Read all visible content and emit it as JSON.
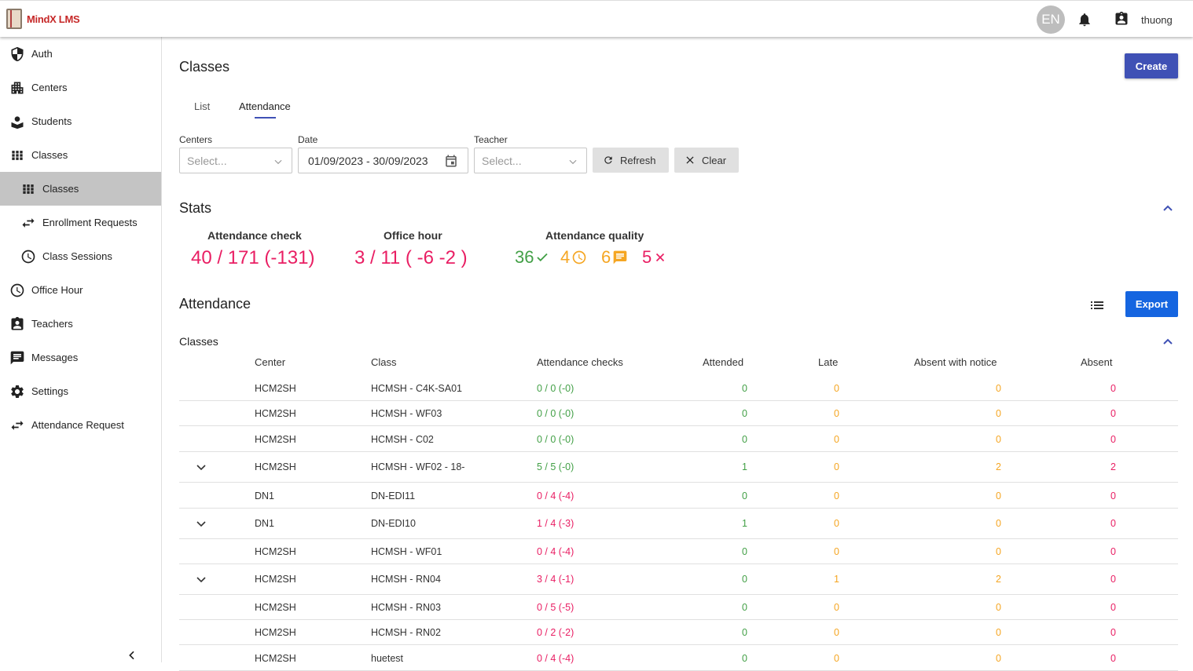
{
  "app": {
    "brand": "MindX LMS",
    "language_avatar": "EN",
    "user": "thuong"
  },
  "sidebar": {
    "items": [
      {
        "label": "Auth",
        "icon": "shield-icon"
      },
      {
        "label": "Centers",
        "icon": "building-icon"
      },
      {
        "label": "Students",
        "icon": "student-icon"
      },
      {
        "label": "Classes",
        "icon": "grid-icon"
      },
      {
        "label": "Classes",
        "icon": "grid-icon",
        "active": true
      },
      {
        "label": "Enrollment Requests",
        "icon": "swap-icon"
      },
      {
        "label": "Class Sessions",
        "icon": "clock-icon"
      },
      {
        "label": "Office Hour",
        "icon": "clock-icon"
      },
      {
        "label": "Teachers",
        "icon": "badge-icon"
      },
      {
        "label": "Messages",
        "icon": "message-icon"
      },
      {
        "label": "Settings",
        "icon": "gear-icon"
      },
      {
        "label": "Attendance Request",
        "icon": "swap-icon"
      }
    ]
  },
  "page": {
    "title": "Classes",
    "create_label": "Create"
  },
  "tabs": [
    {
      "label": "List"
    },
    {
      "label": "Attendance",
      "active": true
    }
  ],
  "filters": {
    "centers_label": "Centers",
    "centers_placeholder": "Select...",
    "date_label": "Date",
    "date_value": "01/09/2023 - 30/09/2023",
    "teacher_label": "Teacher",
    "teacher_placeholder": "Select...",
    "refresh_label": "Refresh",
    "clear_label": "Clear"
  },
  "stats": {
    "title": "Stats",
    "attendance_check_label": "Attendance check",
    "attendance_check_value": "40 / 171 (-131)",
    "office_hour_label": "Office hour",
    "office_hour_value": "3 / 11 ( -6 -2 )",
    "quality_label": "Attendance quality",
    "quality": {
      "attended": "36",
      "late": "4",
      "notice": "6",
      "absent": "5"
    },
    "colors": {
      "attended": "#43a047",
      "late": "#f5a623",
      "notice": "#f5a623",
      "absent": "#e91e63"
    }
  },
  "attendance": {
    "title": "Attendance",
    "export_label": "Export",
    "sub_title": "Classes",
    "columns": [
      "Center",
      "Class",
      "Attendance checks",
      "Attended",
      "Late",
      "Absent with notice",
      "Absent"
    ],
    "rows": [
      {
        "center": "HCM2SH",
        "class": "HCMSH - C4K-SA01",
        "checks": "0 / 0 (-0)",
        "check_status": "green",
        "attended": "0",
        "late": "0",
        "notice": "0",
        "absent": "0",
        "expandable": false
      },
      {
        "center": "HCM2SH",
        "class": "HCMSH - WF03",
        "checks": "0 / 0 (-0)",
        "check_status": "green",
        "attended": "0",
        "late": "0",
        "notice": "0",
        "absent": "0",
        "expandable": false
      },
      {
        "center": "HCM2SH",
        "class": "HCMSH - C02",
        "checks": "0 / 0 (-0)",
        "check_status": "green",
        "attended": "0",
        "late": "0",
        "notice": "0",
        "absent": "0",
        "expandable": false
      },
      {
        "center": "HCM2SH",
        "class": "HCMSH - WF02 - 18-",
        "checks": "5 / 5 (-0)",
        "check_status": "green",
        "attended": "1",
        "late": "0",
        "notice": "2",
        "absent": "2",
        "expandable": true
      },
      {
        "center": "DN1",
        "class": "DN-EDI11",
        "checks": "0 / 4 (-4)",
        "check_status": "pink",
        "attended": "0",
        "late": "0",
        "notice": "0",
        "absent": "0",
        "expandable": false
      },
      {
        "center": "DN1",
        "class": "DN-EDI10",
        "checks": "1 / 4 (-3)",
        "check_status": "pink",
        "attended": "1",
        "late": "0",
        "notice": "0",
        "absent": "0",
        "expandable": true
      },
      {
        "center": "HCM2SH",
        "class": "HCMSH - WF01",
        "checks": "0 / 4 (-4)",
        "check_status": "pink",
        "attended": "0",
        "late": "0",
        "notice": "0",
        "absent": "0",
        "expandable": false
      },
      {
        "center": "HCM2SH",
        "class": "HCMSH - RN04",
        "checks": "3 / 4 (-1)",
        "check_status": "pink",
        "attended": "0",
        "late": "1",
        "notice": "2",
        "absent": "0",
        "expandable": true
      },
      {
        "center": "HCM2SH",
        "class": "HCMSH - RN03",
        "checks": "0 / 5 (-5)",
        "check_status": "pink",
        "attended": "0",
        "late": "0",
        "notice": "0",
        "absent": "0",
        "expandable": false
      },
      {
        "center": "HCM2SH",
        "class": "HCMSH - RN02",
        "checks": "0 / 2 (-2)",
        "check_status": "pink",
        "attended": "0",
        "late": "0",
        "notice": "0",
        "absent": "0",
        "expandable": false
      },
      {
        "center": "HCM2SH",
        "class": "huetest",
        "checks": "0 / 4 (-4)",
        "check_status": "pink",
        "attended": "0",
        "late": "0",
        "notice": "0",
        "absent": "0",
        "expandable": false
      }
    ]
  }
}
